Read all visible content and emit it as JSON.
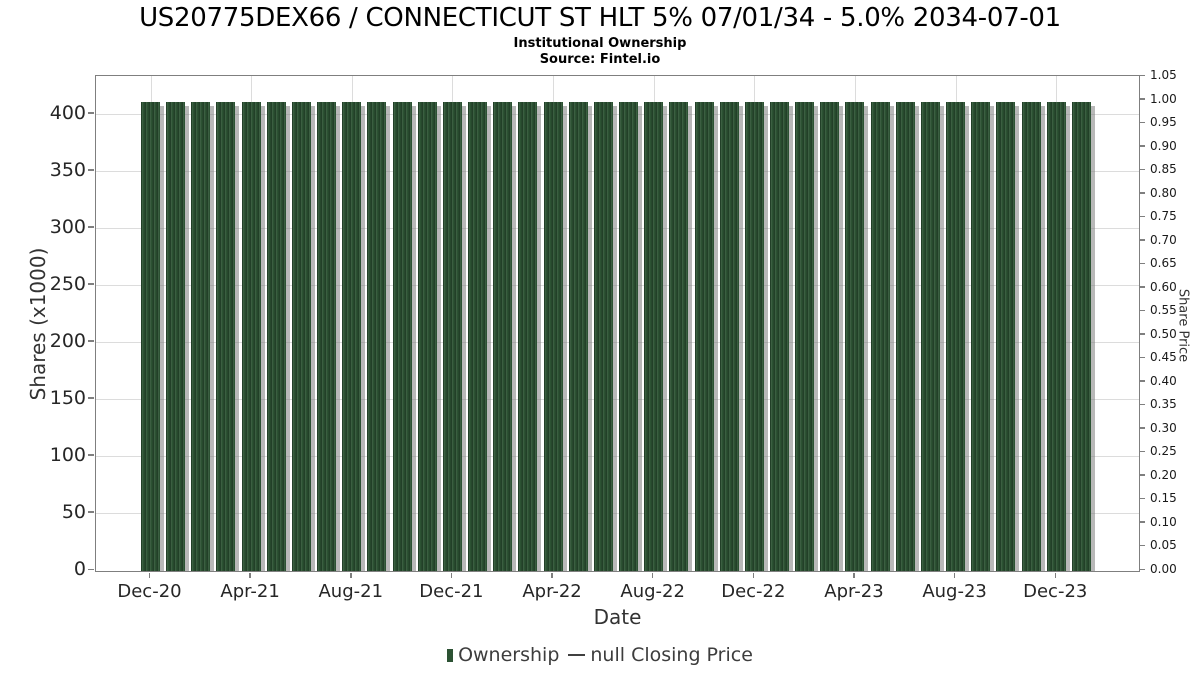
{
  "header": {
    "title": "US20775DEX66 / CONNECTICUT ST HLT 5% 07/01/34 - 5.0% 2034-07-01",
    "subtitle": "Institutional Ownership",
    "source": "Source: Fintel.io"
  },
  "chart_data": {
    "type": "bar",
    "title": "US20775DEX66 / CONNECTICUT ST HLT 5% 07/01/34 - 5.0% 2034-07-01",
    "subtitle": "Institutional Ownership",
    "source": "Source: Fintel.io",
    "xlabel": "Date",
    "ylabel_left": "Shares (x1000)",
    "ylabel_right": "Share Price",
    "grid": true,
    "legend_position": "bottom",
    "categories": [
      "Dec-20",
      "Jan-21",
      "Feb-21",
      "Mar-21",
      "Apr-21",
      "May-21",
      "Jun-21",
      "Jul-21",
      "Aug-21",
      "Sep-21",
      "Oct-21",
      "Nov-21",
      "Dec-21",
      "Jan-22",
      "Feb-22",
      "Mar-22",
      "Apr-22",
      "May-22",
      "Jun-22",
      "Jul-22",
      "Aug-22",
      "Sep-22",
      "Oct-22",
      "Nov-22",
      "Dec-22",
      "Jan-23",
      "Feb-23",
      "Mar-23",
      "Apr-23",
      "May-23",
      "Jun-23",
      "Jul-23",
      "Aug-23",
      "Sep-23",
      "Oct-23",
      "Nov-23",
      "Dec-23",
      "Jan-24"
    ],
    "series": [
      {
        "name": "Ownership",
        "type": "bar",
        "color": "#2c5233",
        "values": [
          411,
          411,
          411,
          411,
          411,
          411,
          411,
          411,
          411,
          411,
          411,
          411,
          411,
          411,
          411,
          411,
          411,
          411,
          411,
          411,
          411,
          411,
          411,
          411,
          411,
          411,
          411,
          411,
          411,
          411,
          411,
          411,
          411,
          411,
          411,
          411,
          411,
          411
        ]
      },
      {
        "name": "null Closing Price",
        "type": "line",
        "color": "#404040",
        "values": []
      }
    ],
    "x_tick_labels": [
      "Dec-20",
      "Apr-21",
      "Aug-21",
      "Dec-21",
      "Apr-22",
      "Aug-22",
      "Dec-22",
      "Apr-23",
      "Aug-23",
      "Dec-23"
    ],
    "x_tick_month_indices": [
      0,
      4,
      8,
      12,
      16,
      20,
      24,
      28,
      32,
      36
    ],
    "ylim_left": [
      0,
      433
    ],
    "yticks_left_values": [
      0,
      50,
      100,
      150,
      200,
      250,
      300,
      350,
      400
    ],
    "yticks_left_labels": [
      "0",
      "50",
      "100",
      "150",
      "200",
      "250",
      "300",
      "350",
      "400"
    ],
    "ylim_right": [
      0,
      1.05
    ],
    "yticks_right_values": [
      0,
      0.05,
      0.1,
      0.15,
      0.2,
      0.25,
      0.3,
      0.35,
      0.4,
      0.45,
      0.5,
      0.55,
      0.6,
      0.65,
      0.7,
      0.75,
      0.8,
      0.85,
      0.9,
      0.95,
      1.0,
      1.05
    ],
    "yticks_right_labels": [
      "0.00",
      "0.05",
      "0.10",
      "0.15",
      "0.20",
      "0.25",
      "0.30",
      "0.35",
      "0.40",
      "0.45",
      "0.50",
      "0.55",
      "0.60",
      "0.65",
      "0.70",
      "0.75",
      "0.80",
      "0.85",
      "0.90",
      "0.95",
      "1.00",
      "1.05"
    ]
  }
}
